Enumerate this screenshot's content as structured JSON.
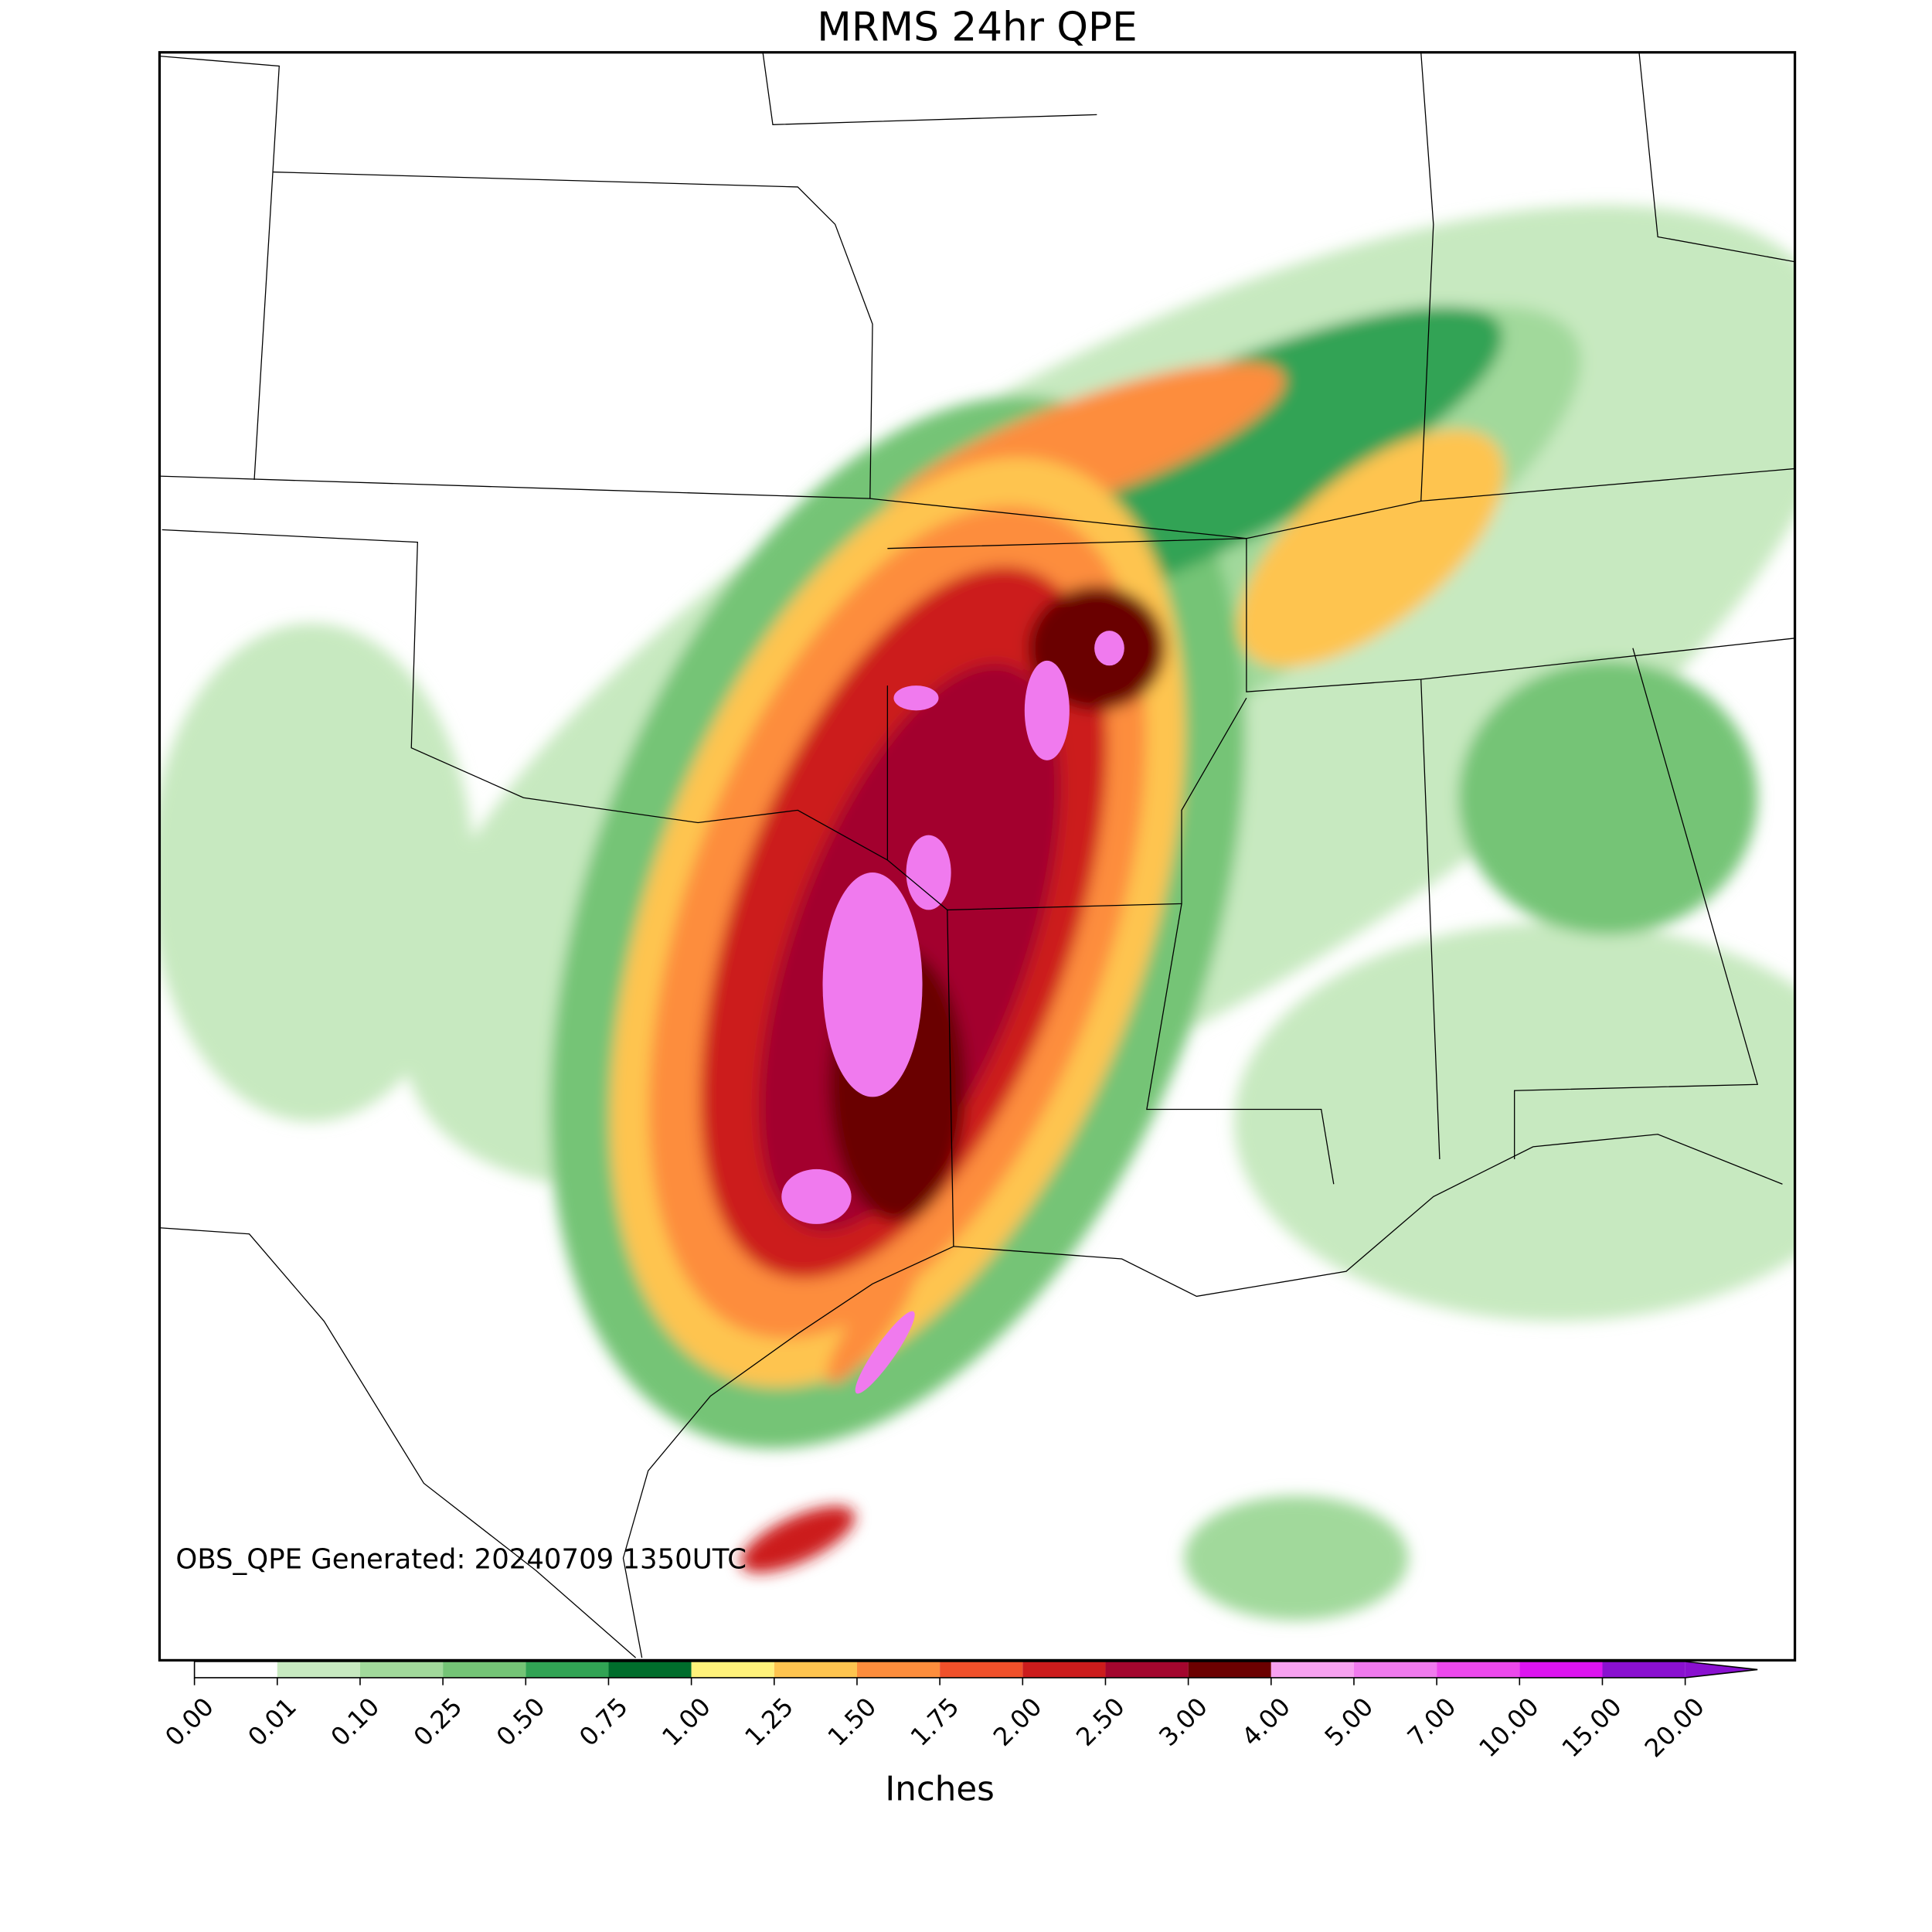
{
  "chart_data": {
    "type": "map",
    "title": "MRMS 24hr QPE",
    "annotation": "OBS_QPE Generated: 20240709 1350UTC",
    "colorbar": {
      "label": "Inches",
      "extend": "max",
      "levels": [
        {
          "value": 0,
          "label": "0.00"
        },
        {
          "value": 0.01,
          "label": "0.01"
        },
        {
          "value": 0.1,
          "label": "0.10"
        },
        {
          "value": 0.25,
          "label": "0.25"
        },
        {
          "value": 0.5,
          "label": "0.50"
        },
        {
          "value": 0.75,
          "label": "0.75"
        },
        {
          "value": 1,
          "label": "1.00"
        },
        {
          "value": 1.25,
          "label": "1.25"
        },
        {
          "value": 1.5,
          "label": "1.50"
        },
        {
          "value": 1.75,
          "label": "1.75"
        },
        {
          "value": 2,
          "label": "2.00"
        },
        {
          "value": 2.5,
          "label": "2.50"
        },
        {
          "value": 3,
          "label": "3.00"
        },
        {
          "value": 4,
          "label": "4.00"
        },
        {
          "value": 5,
          "label": "5.00"
        },
        {
          "value": 7,
          "label": "7.00"
        },
        {
          "value": 10,
          "label": "10.00"
        },
        {
          "value": 15,
          "label": "15.00"
        },
        {
          "value": 20,
          "label": "20.00"
        }
      ],
      "colors": [
        "#ffffff",
        "#c7e9c0",
        "#a1d99b",
        "#74c476",
        "#31a354",
        "#006d2c",
        "#fff27a",
        "#fec44f",
        "#fd8d3c",
        "#f0502a",
        "#cc1c1c",
        "#a3062e",
        "#6b0000",
        "#f7a1f0",
        "#f07aee",
        "#ec48ec",
        "#dd14f0",
        "#8a10d0"
      ]
    }
  }
}
